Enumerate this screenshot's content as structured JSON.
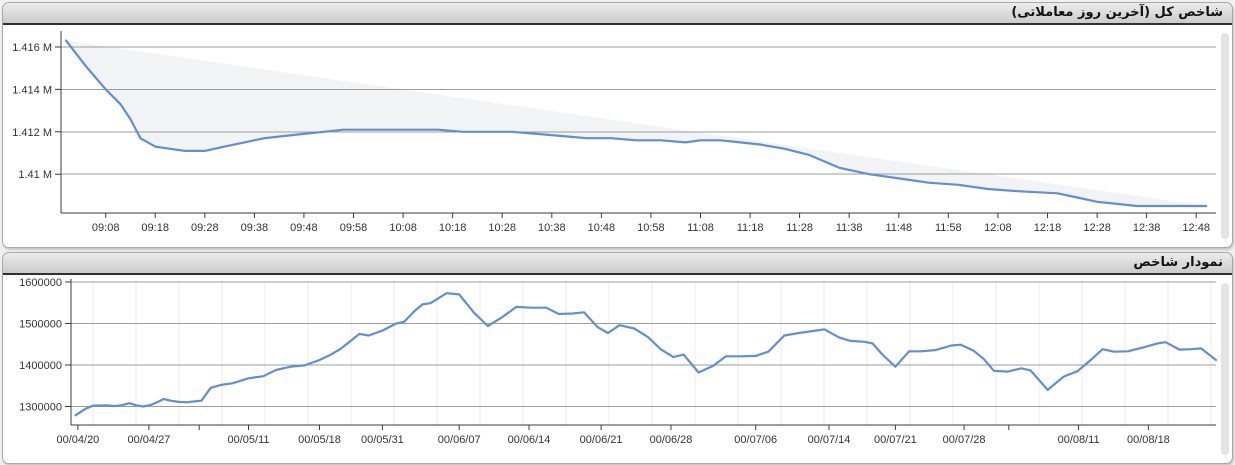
{
  "panels": [
    {
      "title": "شاخص کل (آخرین روز معاملاتی)"
    },
    {
      "title": "نمودار شاخص"
    }
  ],
  "colors": {
    "page_bg": "#f0f0f0",
    "panel_bg": "#ffffff",
    "panel_border": "#a8a8a8",
    "header_grad_top": "#ececec",
    "header_grad_bottom": "#cbcbcb",
    "header_border": "#303030",
    "axis": "#3c3c3c",
    "grid": "#9c9c9c",
    "vgrid": "#ebebeb",
    "label": "#333333",
    "line_blue": "#5e8fd8",
    "band_fill": "#f1f2f4",
    "scrollbar": "#e4e4e4"
  },
  "chart_data": [
    {
      "type": "line",
      "title": "شاخص کل (آخرین روز معاملاتی)",
      "x_tick_labels": [
        "09:08",
        "09:18",
        "09:28",
        "09:38",
        "09:48",
        "09:58",
        "10:08",
        "10:18",
        "10:28",
        "10:38",
        "10:48",
        "10:58",
        "11:08",
        "11:18",
        "11:28",
        "11:38",
        "11:48",
        "11:58",
        "12:08",
        "12:18",
        "12:28",
        "12:38",
        "12:48"
      ],
      "x_first_tick_minutes_after_start": 8,
      "x_tick_interval_minutes": 10,
      "x_range_minutes": [
        0,
        230
      ],
      "y_tick_labels": [
        "1.416 M",
        "1.414 M",
        "1.412 M",
        "1.41 M"
      ],
      "y_ticks": [
        1.416,
        1.414,
        1.412,
        1.41
      ],
      "ylim": [
        1.4081,
        1.4167
      ],
      "unit": "million",
      "grid": "horizontal",
      "legend": "none",
      "line_color": "#5e8fd8",
      "band_fill": "#f1f2f4",
      "band_note": "light gray area between the index line and the straight chord from first to last point",
      "series": [
        {
          "name": "شاخص کل",
          "points": [
            [
              0,
              1.4163
            ],
            [
              4,
              1.4151
            ],
            [
              8,
              1.414
            ],
            [
              11,
              1.4133
            ],
            [
              13,
              1.4126
            ],
            [
              15,
              1.4117
            ],
            [
              18,
              1.4113
            ],
            [
              21,
              1.4112
            ],
            [
              24,
              1.4111
            ],
            [
              28,
              1.4111
            ],
            [
              32,
              1.4113
            ],
            [
              36,
              1.4115
            ],
            [
              40,
              1.4117
            ],
            [
              44,
              1.4118
            ],
            [
              48,
              1.4119
            ],
            [
              52,
              1.412
            ],
            [
              56,
              1.4121
            ],
            [
              62,
              1.4121
            ],
            [
              68,
              1.4121
            ],
            [
              75,
              1.4121
            ],
            [
              80,
              1.412
            ],
            [
              85,
              1.412
            ],
            [
              90,
              1.412
            ],
            [
              95,
              1.4119
            ],
            [
              100,
              1.4118
            ],
            [
              105,
              1.4117
            ],
            [
              110,
              1.4117
            ],
            [
              115,
              1.4116
            ],
            [
              120,
              1.4116
            ],
            [
              125,
              1.4115
            ],
            [
              128,
              1.4116
            ],
            [
              132,
              1.4116
            ],
            [
              136,
              1.4115
            ],
            [
              140,
              1.4114
            ],
            [
              145,
              1.4112
            ],
            [
              150,
              1.4109
            ],
            [
              156,
              1.4103
            ],
            [
              162,
              1.41
            ],
            [
              168,
              1.4098
            ],
            [
              174,
              1.4096
            ],
            [
              180,
              1.4095
            ],
            [
              186,
              1.4093
            ],
            [
              192,
              1.4092
            ],
            [
              200,
              1.4091
            ],
            [
              204,
              1.4089
            ],
            [
              208,
              1.4087
            ],
            [
              212,
              1.4086
            ],
            [
              216,
              1.4085
            ],
            [
              222,
              1.4085
            ],
            [
              230,
              1.4085
            ]
          ]
        }
      ]
    },
    {
      "type": "line",
      "title": "نمودار شاخص",
      "x_tick_labels": [
        "00/04/20",
        "00/04/27",
        "00/05/11",
        "00/05/18",
        "00/05/31",
        "00/06/07",
        "00/06/14",
        "00/06/21",
        "00/06/28",
        "00/07/06",
        "00/07/14",
        "00/07/21",
        "00/07/28",
        "00/08/11",
        "00/08/18"
      ],
      "x_tick_positions": [
        0.006,
        0.068,
        0.155,
        0.217,
        0.272,
        0.339,
        0.4,
        0.463,
        0.524,
        0.598,
        0.662,
        0.72,
        0.78,
        0.88,
        0.941
      ],
      "x_unlabeled_tick_positions": [
        0.112,
        0.819
      ],
      "y_tick_labels": [
        "1600000",
        "1500000",
        "1400000",
        "1300000"
      ],
      "y_ticks": [
        1600000,
        1500000,
        1400000,
        1300000
      ],
      "ylim": [
        1255000,
        1602000
      ],
      "grid": "both",
      "legend": "none",
      "line_color": "#5e8fd8",
      "series": [
        {
          "name": "شاخص",
          "points": [
            [
              0.004,
              1279000
            ],
            [
              0.013,
              1295000
            ],
            [
              0.019,
              1302000
            ],
            [
              0.031,
              1303000
            ],
            [
              0.038,
              1301000
            ],
            [
              0.044,
              1303000
            ],
            [
              0.051,
              1308000
            ],
            [
              0.057,
              1303000
            ],
            [
              0.063,
              1300000
            ],
            [
              0.07,
              1304000
            ],
            [
              0.076,
              1311000
            ],
            [
              0.081,
              1318000
            ],
            [
              0.087,
              1314000
            ],
            [
              0.094,
              1311000
            ],
            [
              0.101,
              1310000
            ],
            [
              0.107,
              1312000
            ],
            [
              0.114,
              1314000
            ],
            [
              0.122,
              1345000
            ],
            [
              0.131,
              1352000
            ],
            [
              0.141,
              1356000
            ],
            [
              0.155,
              1368000
            ],
            [
              0.168,
              1373000
            ],
            [
              0.179,
              1388000
            ],
            [
              0.192,
              1396000
            ],
            [
              0.204,
              1399000
            ],
            [
              0.217,
              1412000
            ],
            [
              0.227,
              1425000
            ],
            [
              0.236,
              1440000
            ],
            [
              0.246,
              1462000
            ],
            [
              0.252,
              1475000
            ],
            [
              0.26,
              1471000
            ],
            [
              0.272,
              1483000
            ],
            [
              0.284,
              1500000
            ],
            [
              0.291,
              1504000
            ],
            [
              0.3,
              1530000
            ],
            [
              0.307,
              1546000
            ],
            [
              0.314,
              1549000
            ],
            [
              0.328,
              1573000
            ],
            [
              0.339,
              1570000
            ],
            [
              0.352,
              1526000
            ],
            [
              0.364,
              1494000
            ],
            [
              0.376,
              1514000
            ],
            [
              0.389,
              1540000
            ],
            [
              0.402,
              1538000
            ],
            [
              0.415,
              1538000
            ],
            [
              0.426,
              1523000
            ],
            [
              0.438,
              1524000
            ],
            [
              0.448,
              1527000
            ],
            [
              0.46,
              1491000
            ],
            [
              0.469,
              1477000
            ],
            [
              0.479,
              1496000
            ],
            [
              0.492,
              1488000
            ],
            [
              0.504,
              1467000
            ],
            [
              0.515,
              1438000
            ],
            [
              0.526,
              1419000
            ],
            [
              0.535,
              1425000
            ],
            [
              0.548,
              1382000
            ],
            [
              0.561,
              1398000
            ],
            [
              0.572,
              1421000
            ],
            [
              0.585,
              1421000
            ],
            [
              0.598,
              1422000
            ],
            [
              0.609,
              1432000
            ],
            [
              0.623,
              1471000
            ],
            [
              0.638,
              1478000
            ],
            [
              0.648,
              1482000
            ],
            [
              0.658,
              1486000
            ],
            [
              0.671,
              1466000
            ],
            [
              0.681,
              1458000
            ],
            [
              0.693,
              1456000
            ],
            [
              0.7,
              1452000
            ],
            [
              0.709,
              1424000
            ],
            [
              0.72,
              1396000
            ],
            [
              0.732,
              1433000
            ],
            [
              0.742,
              1433000
            ],
            [
              0.755,
              1436000
            ],
            [
              0.769,
              1447000
            ],
            [
              0.777,
              1449000
            ],
            [
              0.788,
              1435000
            ],
            [
              0.797,
              1415000
            ],
            [
              0.806,
              1386000
            ],
            [
              0.818,
              1384000
            ],
            [
              0.83,
              1392000
            ],
            [
              0.838,
              1387000
            ],
            [
              0.853,
              1340000
            ],
            [
              0.867,
              1372000
            ],
            [
              0.879,
              1385000
            ],
            [
              0.891,
              1413000
            ],
            [
              0.901,
              1438000
            ],
            [
              0.911,
              1432000
            ],
            [
              0.923,
              1433000
            ],
            [
              0.936,
              1442000
            ],
            [
              0.949,
              1452000
            ],
            [
              0.956,
              1455000
            ],
            [
              0.968,
              1437000
            ],
            [
              0.978,
              1438000
            ],
            [
              0.987,
              1440000
            ],
            [
              1.0,
              1412000
            ]
          ]
        }
      ]
    }
  ]
}
